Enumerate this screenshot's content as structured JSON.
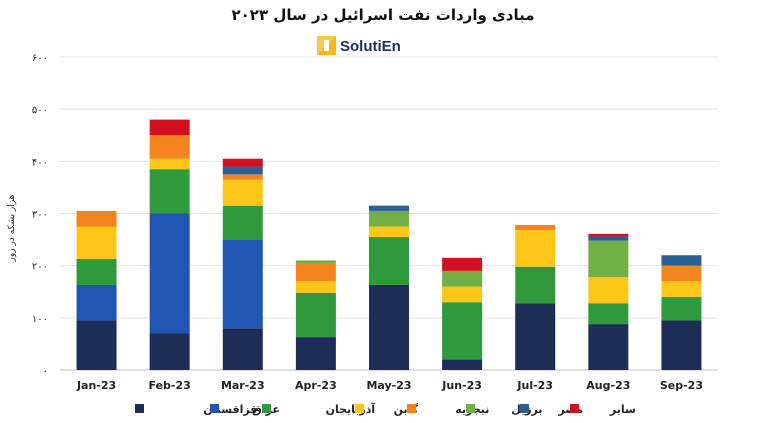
{
  "chart_data": {
    "type": "bar",
    "stacked": true,
    "title": "مبادی واردات نفت اسرائیل در سال ۲۰۲۳",
    "ylabel": "هزار بشکه در روز",
    "xlabel": "",
    "ylim": [
      0,
      600
    ],
    "yticks": [
      0,
      100,
      200,
      300,
      400,
      500,
      600
    ],
    "ytick_labels": [
      "۰",
      "۱۰۰",
      "۲۰۰",
      "۳۰۰",
      "۴۰۰",
      "۵۰۰",
      "۶۰۰"
    ],
    "grid": true,
    "legend_position": "bottom",
    "categories": [
      "Jan-23",
      "Feb-23",
      "Mar-23",
      "Apr-23",
      "May-23",
      "Jun-23",
      "Jul-23",
      "Aug-23",
      "Sep-23"
    ],
    "series": [
      {
        "name": "قزاقستان",
        "color": "#1c2d58",
        "values": [
          95,
          70,
          80,
          63,
          163,
          20,
          128,
          88,
          95
        ]
      },
      {
        "name": "عراق",
        "color": "#1f56b3",
        "values": [
          68,
          230,
          170,
          0,
          0,
          0,
          0,
          0,
          0
        ]
      },
      {
        "name": "آذربایجان",
        "color": "#2e9a3c",
        "values": [
          50,
          85,
          65,
          85,
          92,
          110,
          70,
          40,
          45
        ]
      },
      {
        "name": "گابن",
        "color": "#ffc61a",
        "values": [
          62,
          20,
          50,
          22,
          20,
          30,
          70,
          50,
          30
        ]
      },
      {
        "name": "نیجریه",
        "color": "#f5841f",
        "values": [
          30,
          45,
          10,
          35,
          0,
          0,
          10,
          0,
          30
        ]
      },
      {
        "name": "برزیل",
        "color": "#72b046",
        "values": [
          0,
          0,
          0,
          5,
          30,
          30,
          0,
          70,
          0
        ]
      },
      {
        "name": "مصر",
        "color": "#2a5f97",
        "values": [
          0,
          0,
          15,
          0,
          10,
          0,
          0,
          8,
          20
        ]
      },
      {
        "name": "سایر",
        "color": "#d40f1f",
        "values": [
          0,
          30,
          15,
          0,
          0,
          25,
          0,
          5,
          0
        ]
      }
    ]
  },
  "logo": {
    "text": "SolutiEn"
  }
}
